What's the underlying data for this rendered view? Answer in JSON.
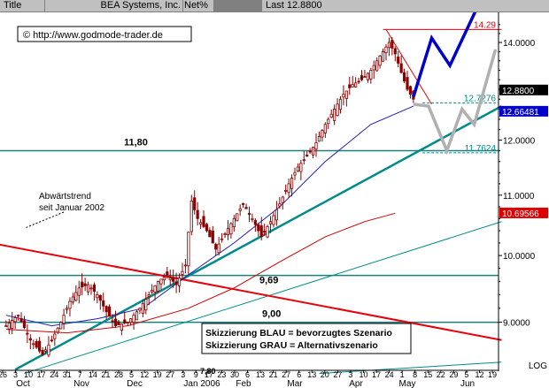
{
  "header": {
    "title_label": "Title",
    "instrument": "BEA Systems, Inc.",
    "metric": "Net%",
    "last_label": "Last",
    "last_value": "12.8800"
  },
  "copyright": "© http://www.godmode-trader.de",
  "colors": {
    "candle": "#8b0000",
    "trend_teal": "#008b8b",
    "downtrend_red": "#e8000b",
    "ma_blue": "#1f1fb4",
    "ma_red": "#cc0000",
    "scenario_blue": "#0000cc",
    "scenario_grey": "#b0b0b0",
    "horizontal_teal": "#1f7f7f",
    "current_price_bg": "#000000",
    "blue_tag_bg": "#0000cc",
    "red_tag_bg": "#dd0000"
  },
  "chart_data": {
    "type": "candlestick",
    "scale": "log",
    "ylim": [
      8.4,
      14.6
    ],
    "y_ticks": [
      "9.0000",
      "10.0000",
      "11.0000",
      "12.0000",
      "13.0000",
      "14.0000"
    ],
    "y_tick_values": [
      9.0,
      10.0,
      11.0,
      12.0,
      13.0,
      14.0
    ],
    "scale_label": "LOG",
    "x_day_labels": [
      "26",
      "3",
      "10",
      "17",
      "24",
      "31",
      "7",
      "14",
      "21",
      "28",
      "5",
      "12",
      "19",
      "27",
      "3",
      "9",
      "17",
      "23",
      "30",
      "6",
      "13",
      "21",
      "27",
      "6",
      "13",
      "20",
      "27",
      "3",
      "10",
      "17",
      "24",
      "1",
      "8",
      "15",
      "22",
      "29",
      "5",
      "12",
      "19"
    ],
    "x_month_labels": [
      "Oct",
      "Nov",
      "Dec",
      "Jan 2006",
      "Feb",
      "Mar",
      "Apr",
      "May",
      "Jun"
    ],
    "price_tags": {
      "current": "12.8800",
      "blue": "12.66481",
      "red": "10.69566"
    },
    "levels": [
      {
        "label": "14.29",
        "value": 14.29
      },
      {
        "label": "12.7276",
        "value": 12.7276
      },
      {
        "label": "11.7624",
        "value": 11.7624
      }
    ],
    "horizontal_lines": [
      {
        "label": "11,80",
        "value": 11.8
      },
      {
        "label": "9,69",
        "value": 9.69
      },
      {
        "label": "9,00",
        "value": 9.0
      }
    ],
    "annotations": {
      "downtrend": [
        "Abwärtstrend",
        "seit Januar 2002"
      ],
      "legend": [
        "Skizzierung BLAU = bevorzugtes Szenario",
        "Skizzierung GRAU = Alternativszenario"
      ],
      "bottom_cut": "7,80"
    },
    "price_path": [
      [
        0,
        8.95
      ],
      [
        4,
        9.1
      ],
      [
        8,
        8.75
      ],
      [
        12,
        8.55
      ],
      [
        15,
        8.75
      ],
      [
        18,
        9.0
      ],
      [
        21,
        9.3
      ],
      [
        24,
        9.5
      ],
      [
        27,
        9.55
      ],
      [
        30,
        9.4
      ],
      [
        33,
        9.15
      ],
      [
        36,
        8.95
      ],
      [
        40,
        9.0
      ],
      [
        44,
        9.2
      ],
      [
        47,
        9.4
      ],
      [
        50,
        9.6
      ],
      [
        53,
        9.7
      ],
      [
        56,
        9.55
      ],
      [
        59,
        9.85
      ],
      [
        61,
        10.9
      ],
      [
        63,
        10.6
      ],
      [
        66,
        10.4
      ],
      [
        69,
        10.1
      ],
      [
        72,
        10.35
      ],
      [
        75,
        10.6
      ],
      [
        78,
        10.85
      ],
      [
        81,
        10.6
      ],
      [
        84,
        10.3
      ],
      [
        87,
        10.55
      ],
      [
        90,
        10.85
      ],
      [
        93,
        11.2
      ],
      [
        96,
        11.5
      ],
      [
        99,
        11.7
      ],
      [
        102,
        11.95
      ],
      [
        105,
        12.3
      ],
      [
        108,
        12.6
      ],
      [
        111,
        12.9
      ],
      [
        114,
        13.1
      ],
      [
        117,
        13.2
      ],
      [
        120,
        13.4
      ],
      [
        123,
        13.7
      ],
      [
        126,
        14.0
      ],
      [
        128,
        13.75
      ],
      [
        130,
        13.35
      ],
      [
        132,
        13.0
      ],
      [
        134,
        12.8
      ]
    ],
    "ma_blue_path": [
      [
        0,
        9.1
      ],
      [
        15,
        8.95
      ],
      [
        30,
        9.05
      ],
      [
        45,
        9.2
      ],
      [
        60,
        9.7
      ],
      [
        75,
        10.2
      ],
      [
        90,
        10.8
      ],
      [
        105,
        11.6
      ],
      [
        120,
        12.3
      ],
      [
        134,
        12.66
      ]
    ],
    "ma_red_path": [
      [
        0,
        8.9
      ],
      [
        20,
        8.85
      ],
      [
        40,
        8.95
      ],
      [
        60,
        9.2
      ],
      [
        75,
        9.5
      ],
      [
        90,
        9.9
      ],
      [
        105,
        10.3
      ],
      [
        118,
        10.55
      ],
      [
        128,
        10.69
      ]
    ],
    "trend_lines": [
      {
        "from": [
          3,
          8.35
        ],
        "to": [
          163,
          12.66
        ]
      },
      {
        "from": [
          6,
          8.3
        ],
        "to": [
          163,
          10.55
        ]
      },
      {
        "from": [
          -5,
          10.2
        ],
        "to": [
          163,
          8.75
        ]
      },
      {
        "from": [
          103,
          8.3
        ],
        "to": [
          163,
          8.45
        ]
      },
      {
        "from": [
          125,
          14.29
        ],
        "to": [
          140,
          12.7
        ]
      },
      {
        "from": [
          124,
          14.29
        ],
        "to": [
          163,
          14.29
        ]
      }
    ],
    "scenario_blue": [
      [
        134,
        12.85
      ],
      [
        140,
        14.1
      ],
      [
        146,
        13.5
      ],
      [
        155,
        14.8
      ]
    ],
    "scenario_grey": [
      [
        134,
        12.7
      ],
      [
        139,
        12.66
      ],
      [
        145,
        11.8
      ],
      [
        150,
        12.6
      ],
      [
        154,
        12.3
      ],
      [
        161,
        13.85
      ]
    ]
  }
}
